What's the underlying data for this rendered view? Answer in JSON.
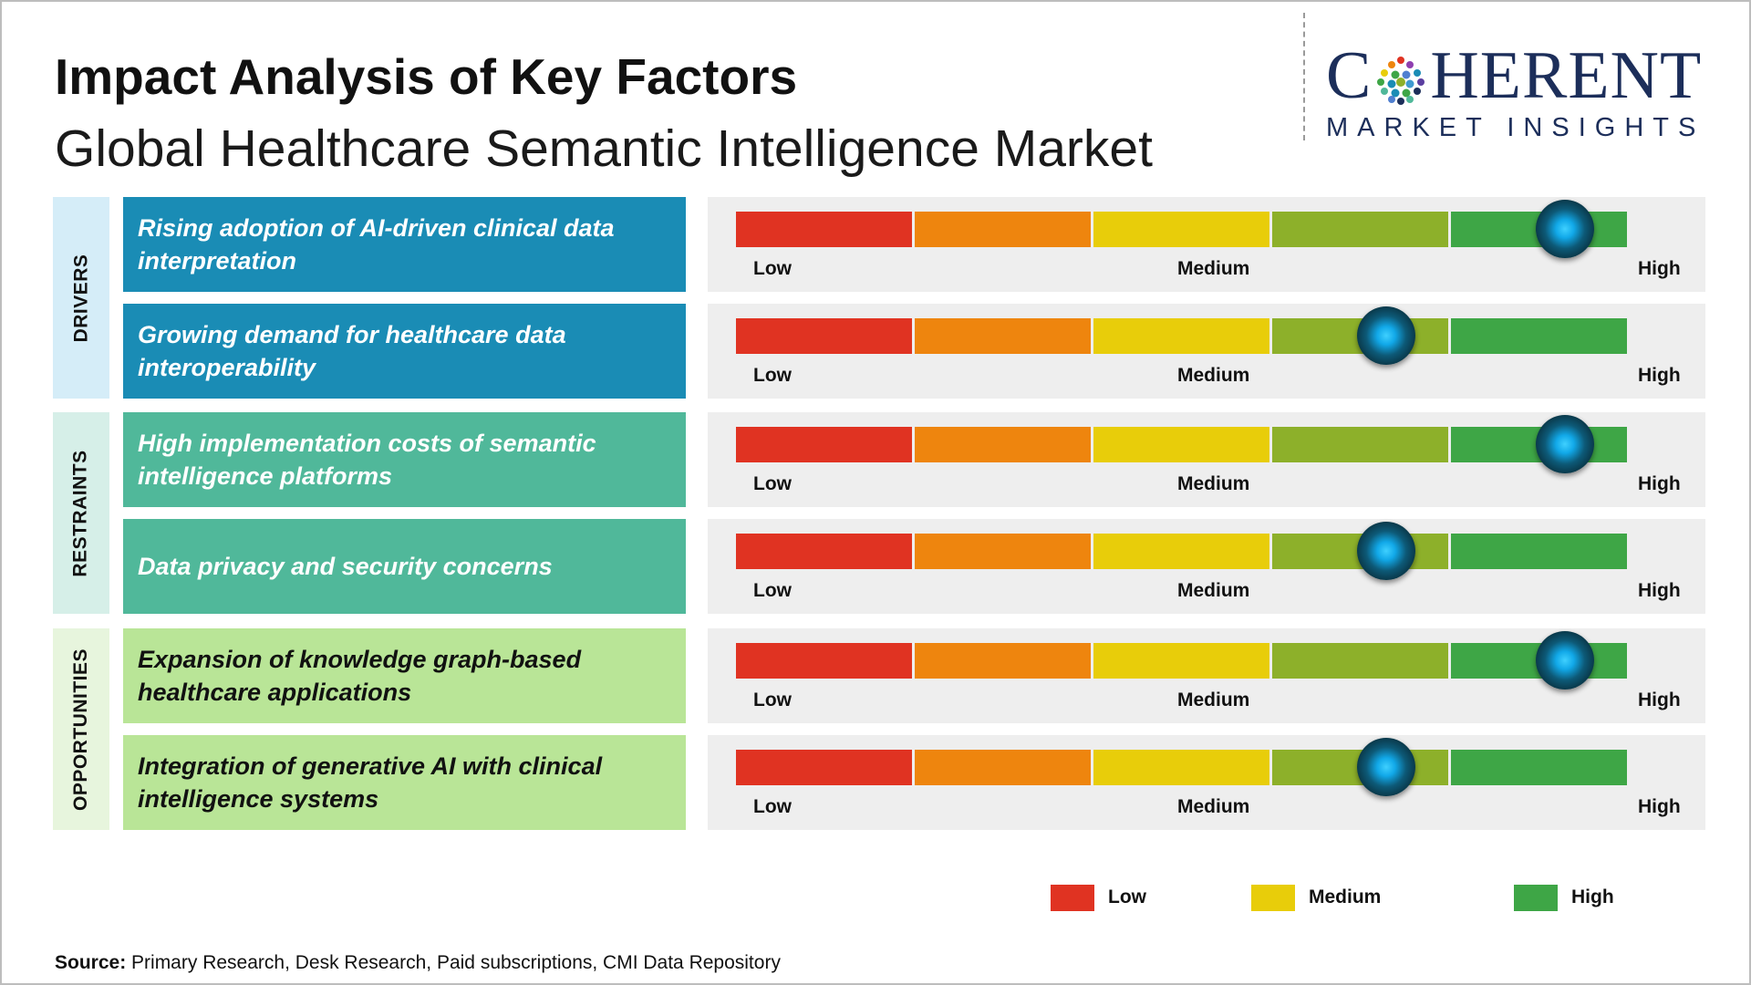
{
  "title": "Impact Analysis of Key Factors",
  "subtitle": "Global Healthcare Semantic Intelligence Market",
  "logo": {
    "word_c": "C",
    "word_rest": "HERENT",
    "tagline": "MARKET INSIGHTS"
  },
  "categories": {
    "drivers": "DRIVERS",
    "restraints": "RESTRAINTS",
    "opportunities": "OPPORTUNITIES"
  },
  "scale_labels": {
    "low": "Low",
    "medium": "Medium",
    "high": "High"
  },
  "factors": [
    {
      "category": "drivers",
      "text": "Rising adoption of AI-driven clinical data interpretation",
      "impact": 0.93
    },
    {
      "category": "drivers",
      "text": "Growing demand for healthcare data interoperability",
      "impact": 0.73
    },
    {
      "category": "restraints",
      "text": "High implementation costs of semantic intelligence platforms",
      "impact": 0.93
    },
    {
      "category": "restraints",
      "text": "Data privacy and security concerns",
      "impact": 0.73
    },
    {
      "category": "opportunities",
      "text": "Expansion of knowledge graph-based healthcare applications",
      "impact": 0.93
    },
    {
      "category": "opportunities",
      "text": "Integration of generative AI with clinical intelligence systems",
      "impact": 0.73
    }
  ],
  "colors": {
    "low": "#e03322",
    "low_mid": "#ee850e",
    "medium": "#e8cd0a",
    "mid_high": "#8db02a",
    "high": "#3ea646",
    "drivers_box": "#1a8cb5",
    "restraints_box": "#50b89a",
    "opportunities_box": "#b9e597"
  },
  "legend": [
    {
      "label": "Low",
      "color": "#e03322"
    },
    {
      "label": "Medium",
      "color": "#e8cd0a"
    },
    {
      "label": "High",
      "color": "#3ea646"
    }
  ],
  "source": {
    "label": "Source:",
    "text": " Primary Research, Desk Research, Paid subscriptions, CMI Data Repository"
  }
}
